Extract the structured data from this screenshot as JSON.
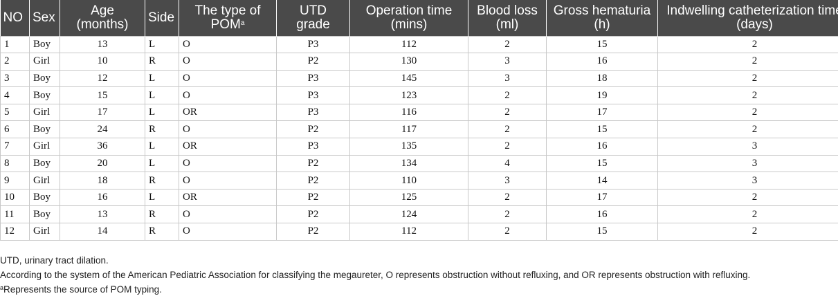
{
  "table": {
    "headers": {
      "no": "NO",
      "sex": "Sex",
      "age_l1": "Age",
      "age_l2": "(months)",
      "side": "Side",
      "pom_l1": "The type of",
      "pom_l2": "POM",
      "pom_sup": "a",
      "utd_l1": "UTD",
      "utd_l2": "grade",
      "op_l1": "Operation time",
      "op_l2": "(mins)",
      "blood_l1": "Blood loss",
      "blood_l2": "(ml)",
      "hem_l1": "Gross hematuria",
      "hem_l2": "(h)",
      "cath_l1": "Indwelling catheterization time",
      "cath_l2": "(days)"
    },
    "rows": [
      {
        "no": "1",
        "sex": "Boy",
        "age": "13",
        "side": "L",
        "pom": "O",
        "utd": "P3",
        "op": "112",
        "blood": "2",
        "hem": "15",
        "cath": "2"
      },
      {
        "no": "2",
        "sex": "Girl",
        "age": "10",
        "side": "R",
        "pom": "O",
        "utd": "P2",
        "op": "130",
        "blood": "3",
        "hem": "16",
        "cath": "2"
      },
      {
        "no": "3",
        "sex": "Boy",
        "age": "12",
        "side": "L",
        "pom": "O",
        "utd": "P3",
        "op": "145",
        "blood": "3",
        "hem": "18",
        "cath": "2"
      },
      {
        "no": "4",
        "sex": "Boy",
        "age": "15",
        "side": "L",
        "pom": "O",
        "utd": "P3",
        "op": "123",
        "blood": "2",
        "hem": "19",
        "cath": "2"
      },
      {
        "no": "5",
        "sex": "Girl",
        "age": "17",
        "side": "L",
        "pom": "OR",
        "utd": "P3",
        "op": "116",
        "blood": "2",
        "hem": "17",
        "cath": "2"
      },
      {
        "no": "6",
        "sex": "Boy",
        "age": "24",
        "side": "R",
        "pom": "O",
        "utd": "P2",
        "op": "117",
        "blood": "2",
        "hem": "15",
        "cath": "2"
      },
      {
        "no": "7",
        "sex": "Girl",
        "age": "36",
        "side": "L",
        "pom": "OR",
        "utd": "P3",
        "op": "135",
        "blood": "2",
        "hem": "16",
        "cath": "3"
      },
      {
        "no": "8",
        "sex": "Boy",
        "age": "20",
        "side": "L",
        "pom": "O",
        "utd": "P2",
        "op": "134",
        "blood": "4",
        "hem": "15",
        "cath": "3"
      },
      {
        "no": "9",
        "sex": "Girl",
        "age": "18",
        "side": "R",
        "pom": "O",
        "utd": "P2",
        "op": "110",
        "blood": "3",
        "hem": "14",
        "cath": "3"
      },
      {
        "no": "10",
        "sex": "Boy",
        "age": "16",
        "side": "L",
        "pom": "OR",
        "utd": "P2",
        "op": "125",
        "blood": "2",
        "hem": "17",
        "cath": "2"
      },
      {
        "no": "11",
        "sex": "Boy",
        "age": "13",
        "side": "R",
        "pom": "O",
        "utd": "P2",
        "op": "124",
        "blood": "2",
        "hem": "16",
        "cath": "2"
      },
      {
        "no": "12",
        "sex": "Girl",
        "age": "14",
        "side": "R",
        "pom": "O",
        "utd": "P2",
        "op": "112",
        "blood": "2",
        "hem": "15",
        "cath": "2"
      }
    ]
  },
  "footnotes": {
    "utd": "UTD, urinary tract dilation.",
    "system": "According to the system of the American Pediatric Association for classifying the megaureter, O represents obstruction without refluxing, and OR represents obstruction with refluxing.",
    "source_sup": "a",
    "source": "Represents the source of POM typing."
  },
  "colors": {
    "header_bg": "#4a4a4a",
    "header_text": "#ffffff",
    "grid": "#c8c8c8"
  }
}
